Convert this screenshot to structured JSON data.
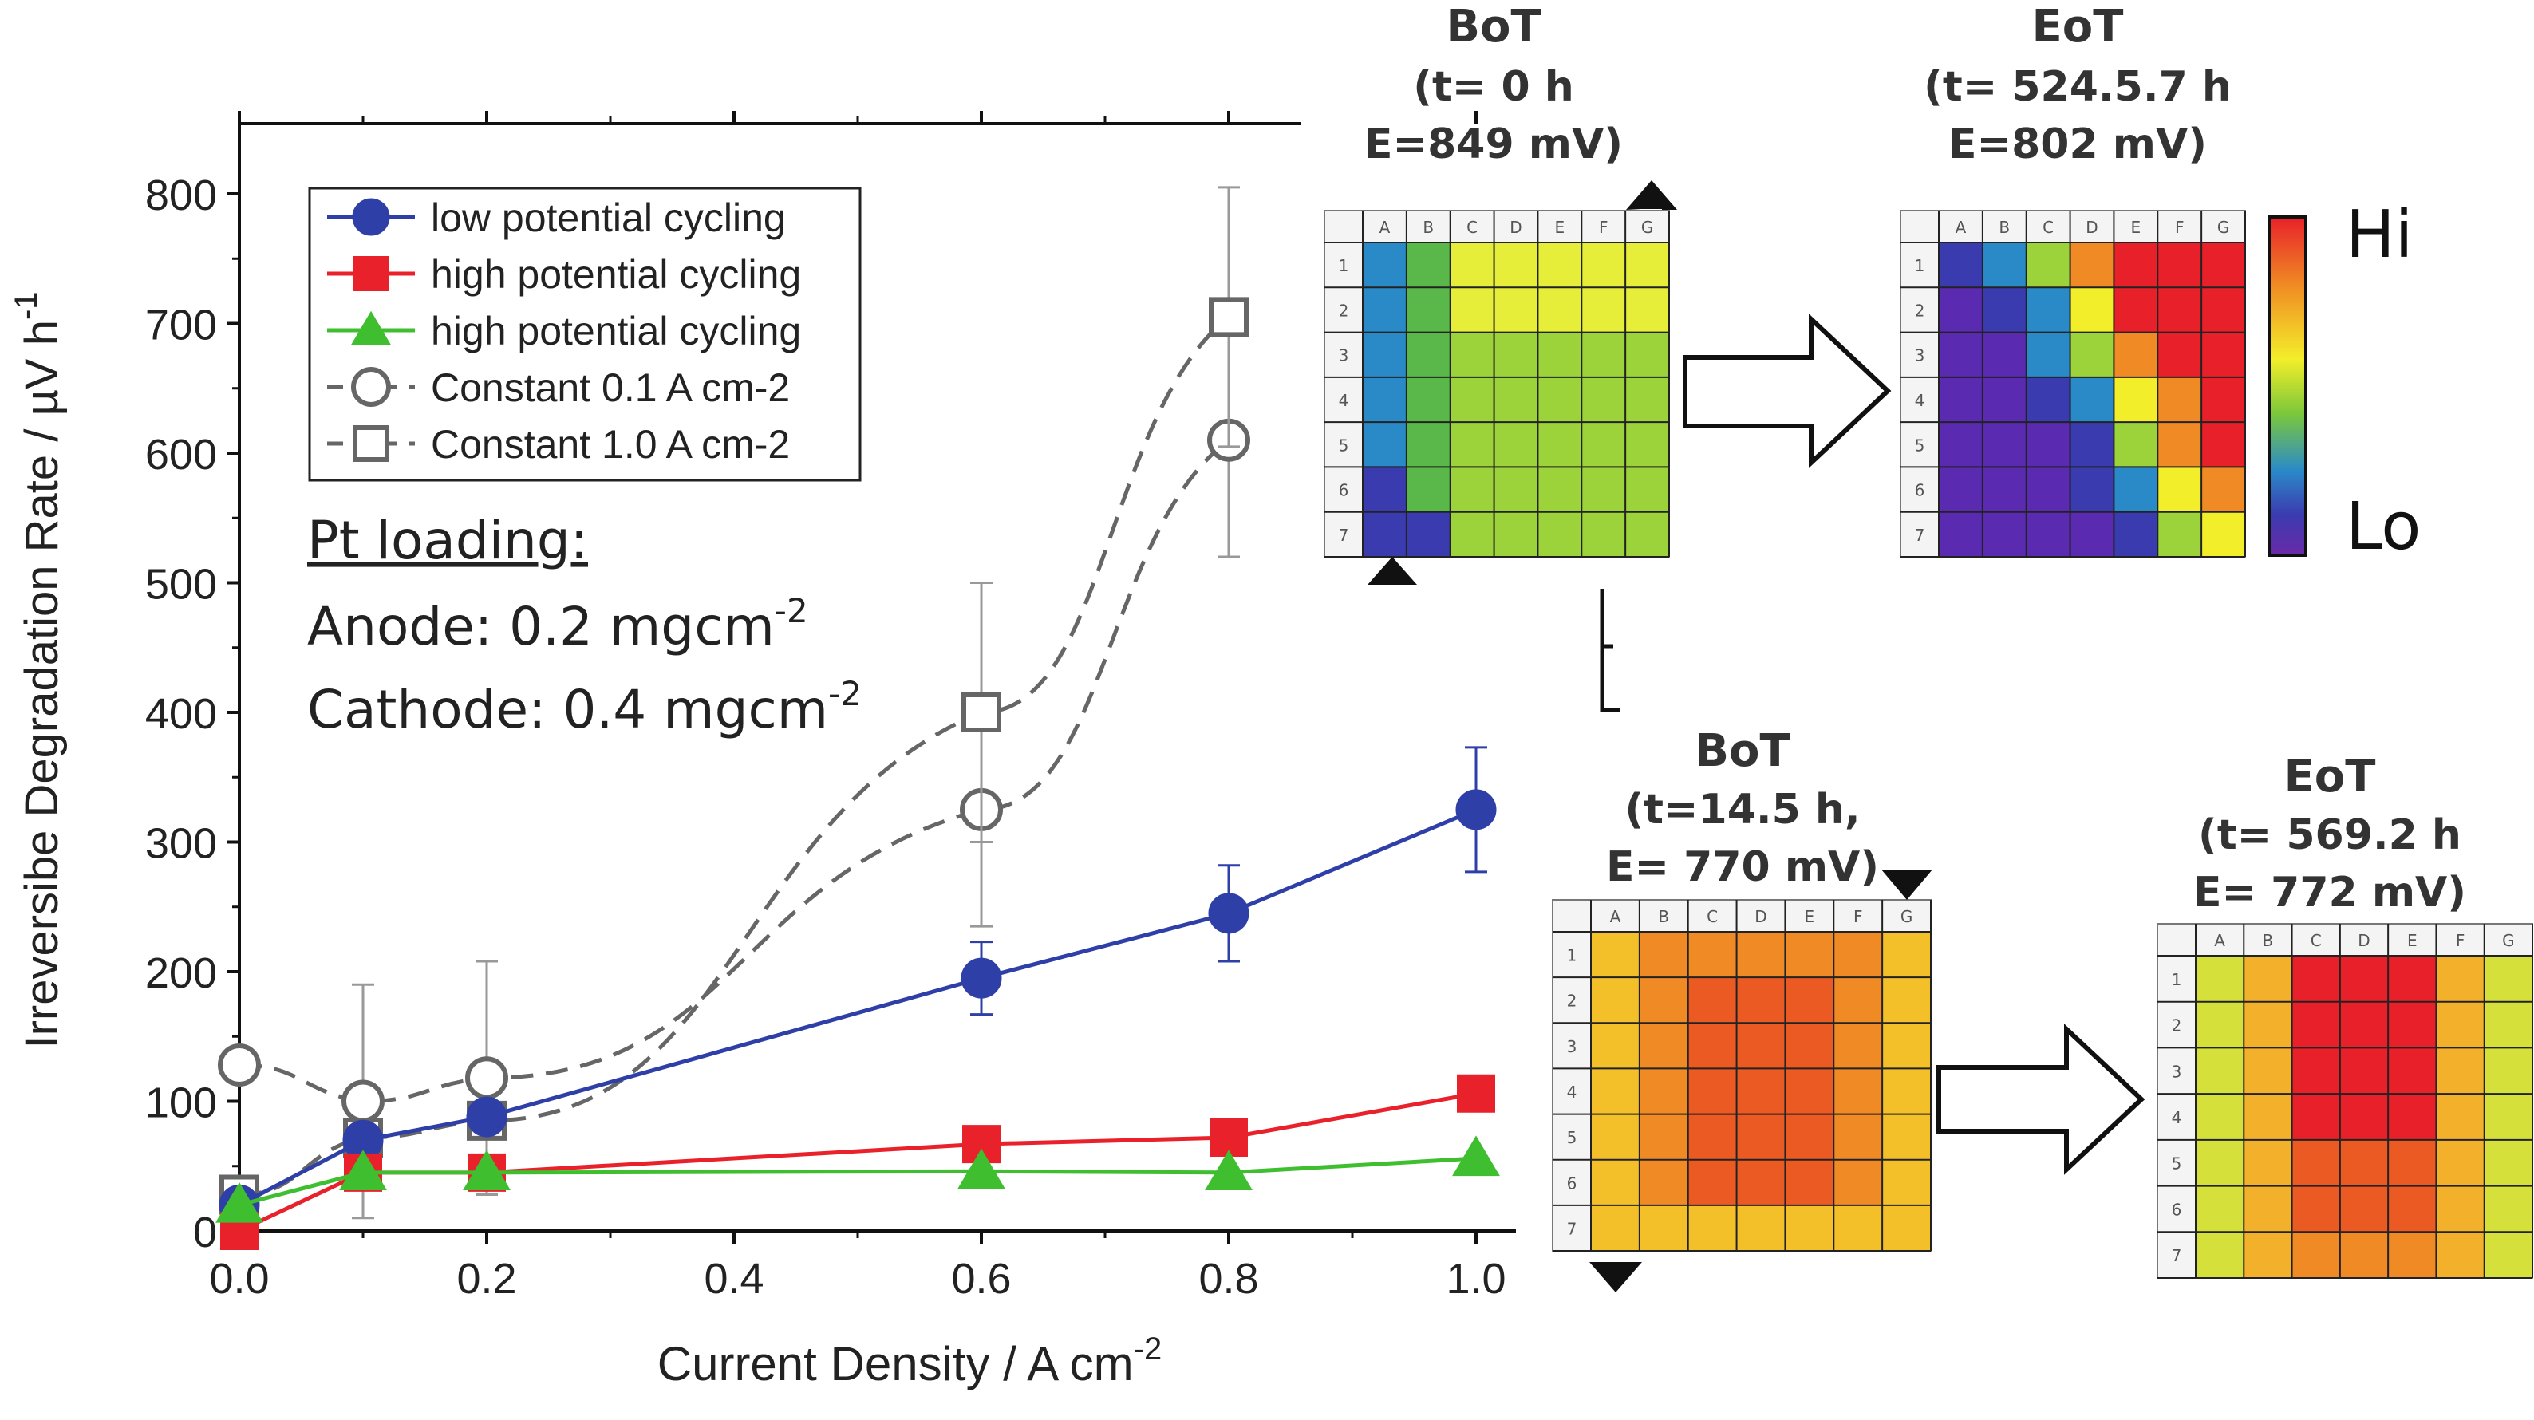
{
  "chart_data": {
    "type": "line",
    "xlabel": "Current Density / A cm",
    "xlabel_sup": "-2",
    "ylabel": "Irreversibe Degradation Rate / µV h",
    "ylabel_sup": "-1",
    "xlim": [
      0,
      1.05
    ],
    "ylim": [
      0,
      850
    ],
    "x_ticks": [
      0.0,
      0.2,
      0.4,
      0.6,
      0.8,
      1.0
    ],
    "x_tick_labels": [
      "0.0",
      "0.2",
      "0.4",
      "0.6",
      "0.8",
      "1.0"
    ],
    "y_ticks": [
      0,
      100,
      200,
      300,
      400,
      500,
      600,
      700,
      800
    ],
    "y_tick_labels": [
      "0",
      "100",
      "200",
      "300",
      "400",
      "500",
      "600",
      "700",
      "800"
    ],
    "legend_placement": "top-left",
    "series": [
      {
        "name": "low potential cycling",
        "color": "#2f3fa8",
        "marker": "circle-filled",
        "dash": "solid",
        "x": [
          0.0,
          0.1,
          0.2,
          0.6,
          0.8,
          1.0
        ],
        "y": [
          20,
          70,
          88,
          195,
          245,
          325
        ],
        "err": [
          0,
          0,
          0,
          28,
          37,
          48
        ],
        "cap": [
          0,
          0,
          0,
          1,
          1,
          1
        ]
      },
      {
        "name": "high potential cycling",
        "color": "#e8212b",
        "marker": "square-filled",
        "dash": "solid",
        "x": [
          0.0,
          0.1,
          0.2,
          0.6,
          0.8,
          1.0
        ],
        "y": [
          0,
          45,
          45,
          67,
          72,
          106
        ],
        "err": [
          0,
          0,
          0,
          0,
          0,
          0
        ],
        "cap": [
          0,
          0,
          0,
          0,
          0,
          0
        ]
      },
      {
        "name": "high potential cycling",
        "color": "#3fbf2f",
        "marker": "triangle-filled",
        "dash": "solid",
        "x": [
          0.0,
          0.1,
          0.2,
          0.6,
          0.8,
          1.0
        ],
        "y": [
          20,
          45,
          45,
          46,
          45,
          56
        ],
        "err": [
          0,
          0,
          0,
          0,
          0,
          0
        ],
        "cap": [
          0,
          0,
          0,
          0,
          0,
          0
        ]
      },
      {
        "name": "Constant 0.1 A cm-2",
        "color": "#666666",
        "marker": "circle-open",
        "dash": "dashed",
        "x": [
          0.0,
          0.1,
          0.2,
          0.6,
          0.8
        ],
        "y": [
          128,
          100,
          118,
          325,
          610
        ],
        "err": [
          0,
          90,
          90,
          90,
          90
        ],
        "cap": [
          0,
          1,
          1,
          1,
          1
        ]
      },
      {
        "name": "Constant 1.0 A cm-2",
        "color": "#666666",
        "marker": "square-open",
        "dash": "dashed",
        "x": [
          0.0,
          0.1,
          0.2,
          0.6,
          0.8
        ],
        "y": [
          28,
          72,
          85,
          400,
          705
        ],
        "err": [
          0,
          0,
          0,
          100,
          100
        ],
        "cap": [
          0,
          0,
          0,
          1,
          1
        ]
      }
    ],
    "annotation": {
      "heading": "Pt loading:",
      "anode_label": "Anode: 0.2 mgcm",
      "anode_sup": "-2",
      "cathode_label": "Cathode: 0.4 mgcm",
      "cathode_sup": "-2"
    }
  },
  "heatmaps": {
    "col_labels": [
      "A",
      "B",
      "C",
      "D",
      "E",
      "F",
      "G"
    ],
    "row_labels": [
      "1",
      "2",
      "3",
      "4",
      "5",
      "6",
      "7"
    ],
    "colorbar": {
      "hi": "Hi",
      "lo": "Lo"
    },
    "panels": [
      {
        "title": "BoT",
        "line1": "(t= 0 h",
        "line2": "E=849 mV)",
        "palette": "botA"
      },
      {
        "title": "EoT",
        "line1": "(t= 524.5.7 h",
        "line2": "E=802 mV)",
        "palette": "eotA"
      },
      {
        "title": "BoT",
        "line1": "(t=14.5 h,",
        "line2": "E= 770 mV)",
        "palette": "botB"
      },
      {
        "title": "EoT",
        "line1": "(t= 569.2 h",
        "line2": "E= 772 mV)",
        "palette": "eotB"
      }
    ]
  },
  "colors": {
    "blue": "#2f3fa8",
    "red": "#e8212b",
    "green": "#3fbf2f",
    "gray": "#666666"
  }
}
